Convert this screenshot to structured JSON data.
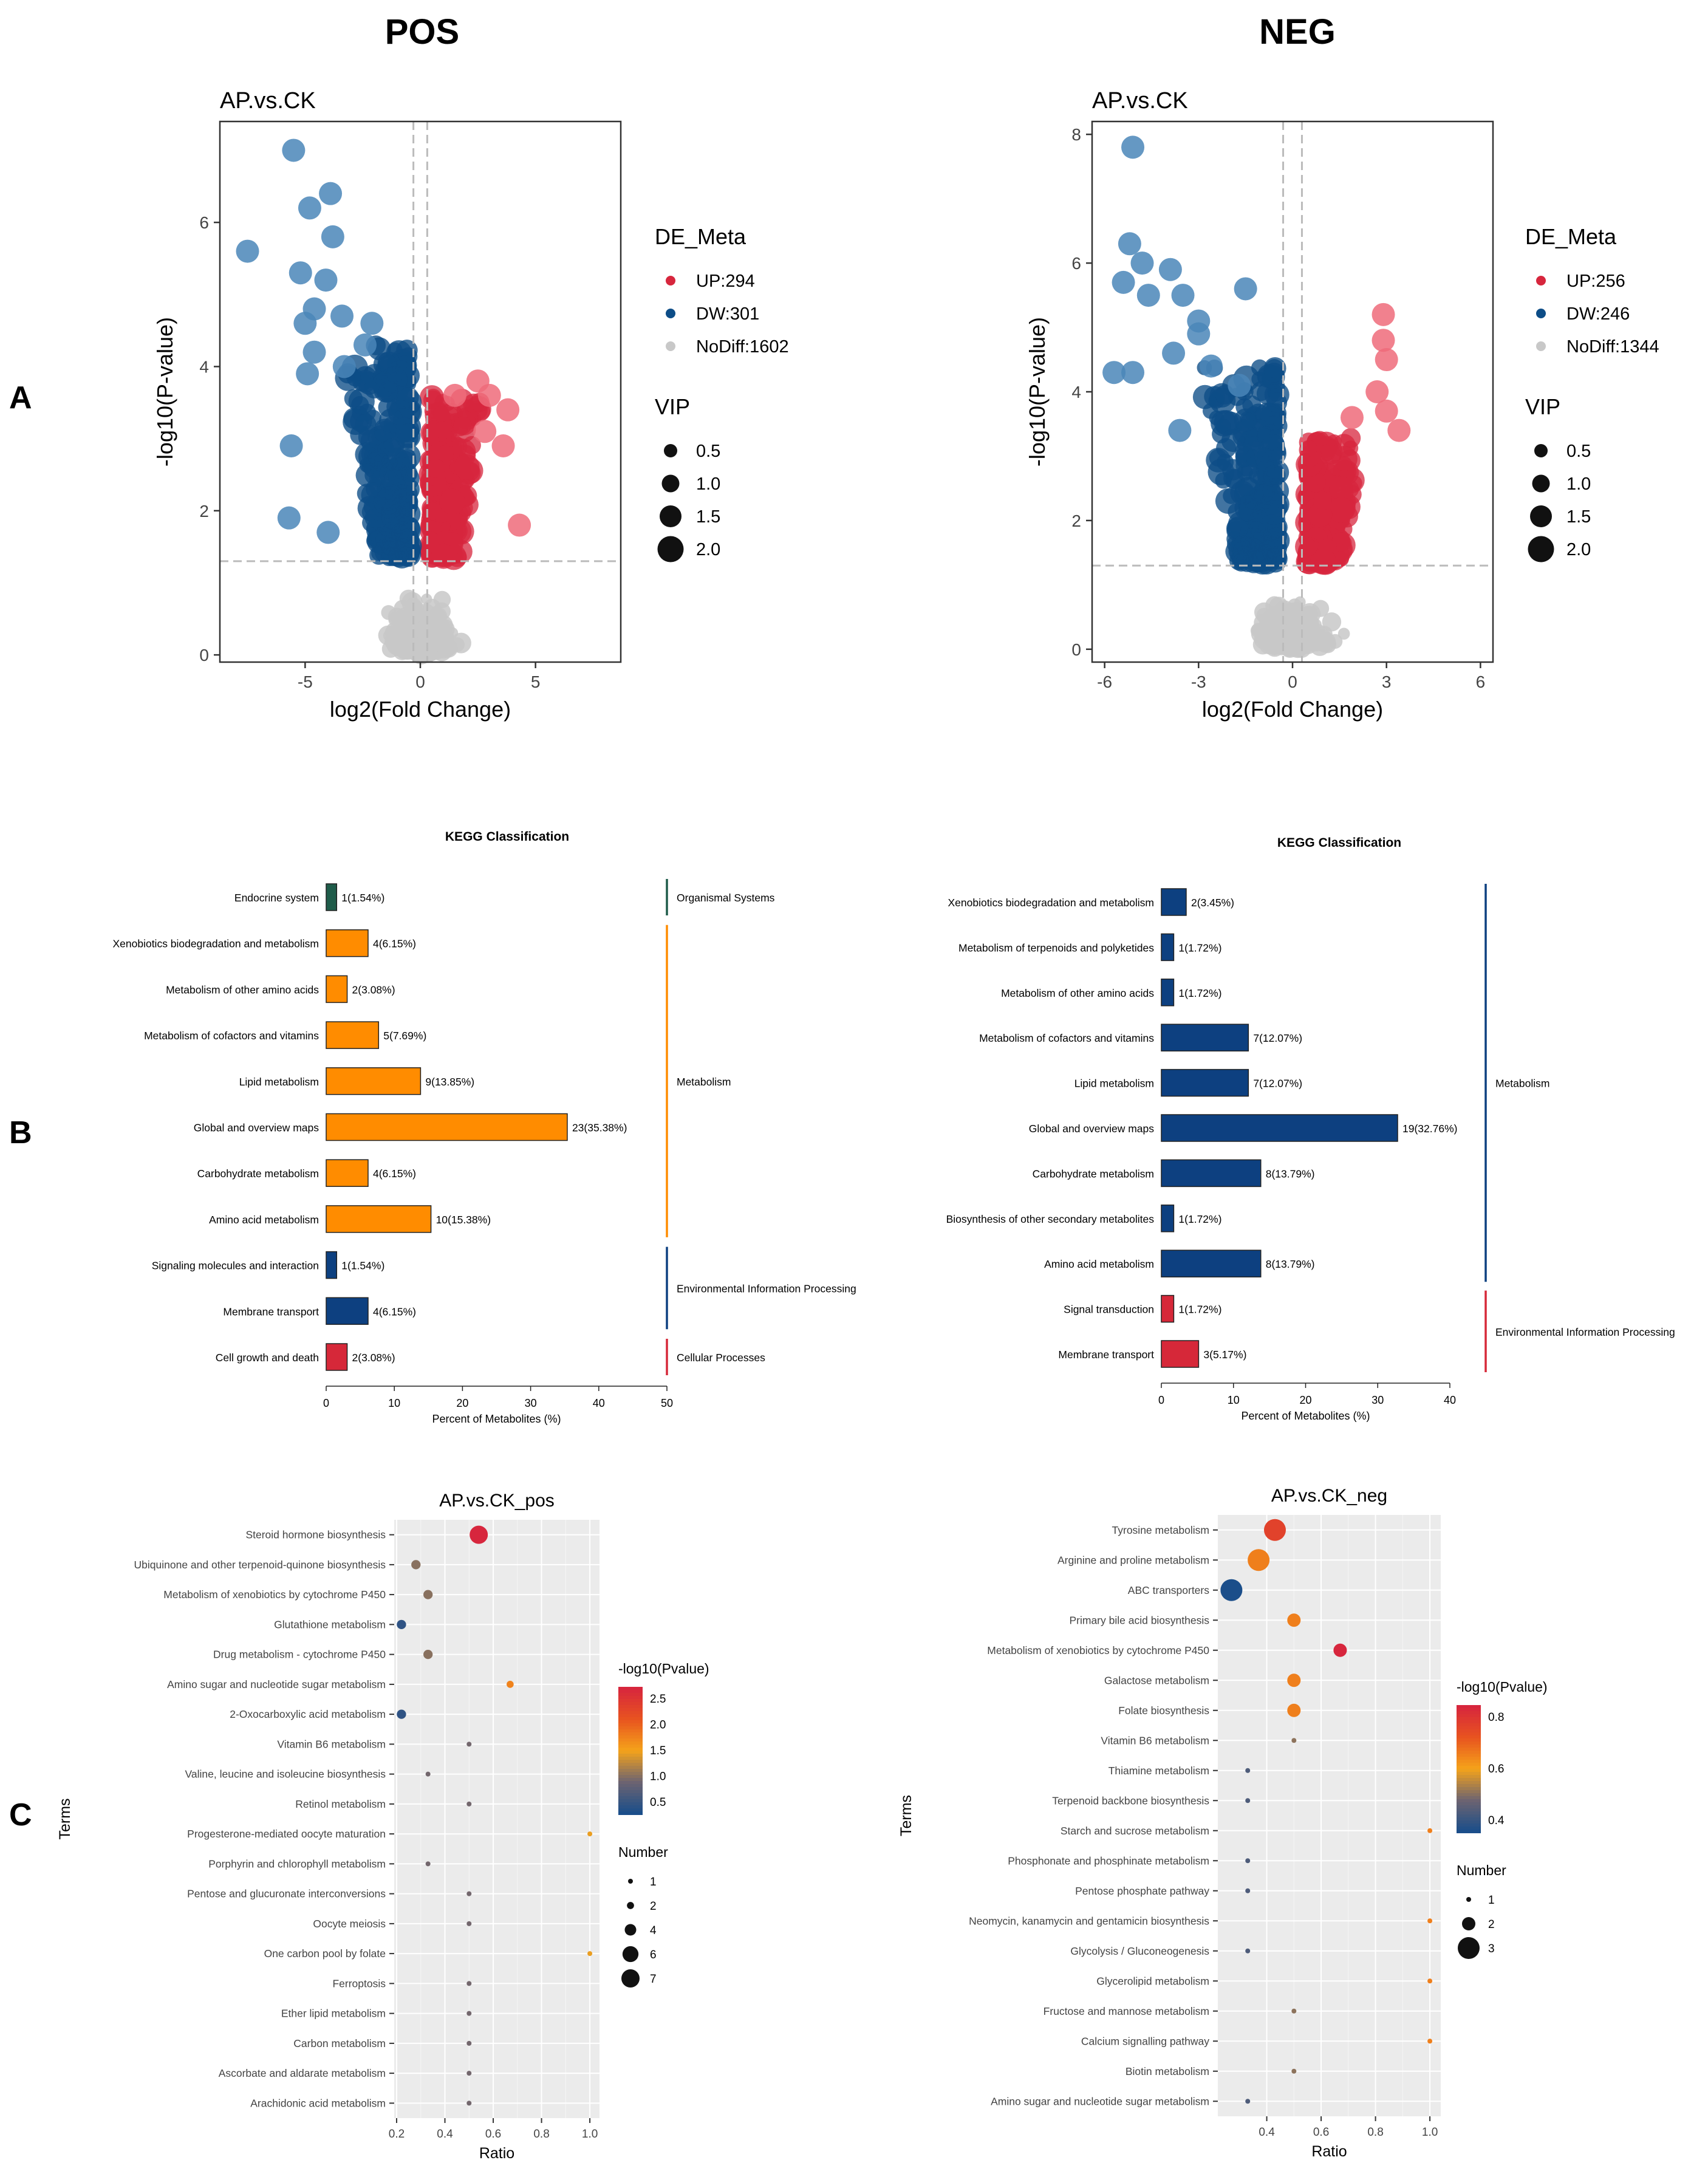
{
  "headers": {
    "pos": "POS",
    "neg": "NEG"
  },
  "panel_labels": {
    "a": "A",
    "b": "B",
    "c": "C"
  },
  "colors": {
    "up": "#d7263d",
    "down": "#0d4d87",
    "nodiff": "#c8c8c8",
    "metabolism": "#ff8c00",
    "organismal": "#1f5c4a",
    "env": "#0d4080",
    "cellular": "#d62839",
    "panel_bg": "#ebebeb"
  },
  "chart_data": [
    {
      "id": "volcano_pos",
      "type": "scatter",
      "title": "AP.vs.CK",
      "xlabel": "log2(Fold Change)",
      "ylabel": "-log10(P-value)",
      "xlim": [
        -8.7,
        8.7
      ],
      "ylim": [
        -0.1,
        7.4
      ],
      "xticks": [
        -5,
        0,
        5
      ],
      "yticks": [
        0,
        2,
        4,
        6
      ],
      "fc_threshold": 0.3,
      "p_threshold": 1.3,
      "legend": {
        "title": "DE_Meta",
        "items": [
          "UP:294",
          "DW:301",
          "NoDiff:1602"
        ],
        "vip_title": "VIP",
        "vip_items": [
          "0.5",
          "1.0",
          "1.5",
          "2.0"
        ]
      },
      "outliers": [
        [
          -5.5,
          7.0
        ],
        [
          -7.5,
          5.6
        ],
        [
          -3.9,
          6.4
        ],
        [
          -4.8,
          6.2
        ],
        [
          -3.8,
          5.8
        ],
        [
          -5.2,
          5.3
        ],
        [
          -4.1,
          5.2
        ],
        [
          -5.0,
          4.6
        ],
        [
          -4.6,
          4.8
        ],
        [
          -3.4,
          4.7
        ],
        [
          -2.1,
          4.6
        ],
        [
          -4.6,
          4.2
        ],
        [
          -2.4,
          4.3
        ],
        [
          -4.9,
          3.9
        ],
        [
          -3.3,
          4.0
        ],
        [
          -5.6,
          2.9
        ],
        [
          -5.7,
          1.9
        ],
        [
          -4.0,
          1.7
        ],
        [
          1.5,
          3.6
        ],
        [
          2.5,
          3.8
        ],
        [
          3.0,
          3.6
        ],
        [
          3.8,
          3.4
        ],
        [
          3.6,
          2.9
        ],
        [
          4.3,
          1.8
        ],
        [
          2.8,
          3.1
        ]
      ]
    },
    {
      "id": "volcano_neg",
      "type": "scatter",
      "title": "AP.vs.CK",
      "xlabel": "log2(Fold Change)",
      "ylabel": "-log10(P-value)",
      "xlim": [
        -6.4,
        6.4
      ],
      "ylim": [
        -0.2,
        8.2
      ],
      "xticks": [
        -6,
        -3,
        0,
        3,
        6
      ],
      "yticks": [
        0,
        2,
        4,
        6,
        8
      ],
      "fc_threshold": 0.3,
      "p_threshold": 1.3,
      "legend": {
        "title": "DE_Meta",
        "items": [
          "UP:256",
          "DW:246",
          "NoDiff:1344"
        ],
        "vip_title": "VIP",
        "vip_items": [
          "0.5",
          "1.0",
          "1.5",
          "2.0"
        ]
      },
      "outliers": [
        [
          -5.1,
          7.8
        ],
        [
          -5.2,
          6.3
        ],
        [
          -4.8,
          6.0
        ],
        [
          -5.4,
          5.7
        ],
        [
          -3.9,
          5.9
        ],
        [
          -4.6,
          5.5
        ],
        [
          -3.5,
          5.5
        ],
        [
          -3.0,
          5.1
        ],
        [
          -1.5,
          5.6
        ],
        [
          -5.7,
          4.3
        ],
        [
          -5.1,
          4.3
        ],
        [
          -3.8,
          4.6
        ],
        [
          -3.0,
          4.9
        ],
        [
          -2.6,
          4.4
        ],
        [
          -1.7,
          4.1
        ],
        [
          -3.6,
          3.4
        ],
        [
          2.9,
          5.2
        ],
        [
          2.9,
          4.8
        ],
        [
          3.0,
          4.5
        ],
        [
          2.7,
          4.0
        ],
        [
          3.0,
          3.7
        ],
        [
          1.9,
          3.6
        ],
        [
          3.4,
          3.4
        ]
      ]
    },
    {
      "id": "kegg_pos",
      "type": "bar",
      "title": "KEGG Classification",
      "xlabel": "Percent of Metabolites (%)",
      "xlim": [
        0,
        50
      ],
      "xticks": [
        0,
        10,
        20,
        30,
        40,
        50
      ],
      "categories": [
        "Endocrine system",
        "Xenobiotics biodegradation and metabolism",
        "Metabolism of other amino acids",
        "Metabolism of cofactors and vitamins",
        "Lipid metabolism",
        "Global and overview maps",
        "Carbohydrate metabolism",
        "Amino acid metabolism",
        "Signaling molecules and interaction",
        "Membrane transport",
        "Cell growth and death"
      ],
      "values": [
        1.54,
        6.15,
        3.08,
        7.69,
        13.85,
        35.38,
        6.15,
        15.38,
        1.54,
        6.15,
        3.08
      ],
      "labels": [
        "1(1.54%)",
        "4(6.15%)",
        "2(3.08%)",
        "5(7.69%)",
        "9(13.85%)",
        "23(35.38%)",
        "4(6.15%)",
        "10(15.38%)",
        "1(1.54%)",
        "4(6.15%)",
        "2(3.08%)"
      ],
      "bar_groups": [
        "organismal",
        "metabolism",
        "metabolism",
        "metabolism",
        "metabolism",
        "metabolism",
        "metabolism",
        "metabolism",
        "env",
        "env",
        "cellular"
      ],
      "groups": [
        {
          "name": "Organismal Systems",
          "key": "organismal",
          "from": 0,
          "to": 0
        },
        {
          "name": "Metabolism",
          "key": "metabolism",
          "from": 1,
          "to": 7
        },
        {
          "name": "Environmental Information Processing",
          "key": "env",
          "from": 8,
          "to": 9
        },
        {
          "name": "Cellular Processes",
          "key": "cellular",
          "from": 10,
          "to": 10
        }
      ]
    },
    {
      "id": "kegg_neg",
      "type": "bar",
      "title": "KEGG Classification",
      "xlabel": "Percent of Metabolites (%)",
      "xlim": [
        0,
        40
      ],
      "xticks": [
        0,
        10,
        20,
        30,
        40
      ],
      "categories": [
        "Xenobiotics biodegradation and metabolism",
        "Metabolism of terpenoids and polyketides",
        "Metabolism of other amino acids",
        "Metabolism of cofactors and vitamins",
        "Lipid metabolism",
        "Global and overview maps",
        "Carbohydrate metabolism",
        "Biosynthesis of other secondary metabolites",
        "Amino acid metabolism",
        "Signal transduction",
        "Membrane transport"
      ],
      "values": [
        3.45,
        1.72,
        1.72,
        12.07,
        12.07,
        32.76,
        13.79,
        1.72,
        13.79,
        1.72,
        5.17
      ],
      "labels": [
        "2(3.45%)",
        "1(1.72%)",
        "1(1.72%)",
        "7(12.07%)",
        "7(12.07%)",
        "19(32.76%)",
        "8(13.79%)",
        "1(1.72%)",
        "8(13.79%)",
        "1(1.72%)",
        "3(5.17%)"
      ],
      "bar_groups": [
        "env",
        "env",
        "env",
        "env",
        "env",
        "env",
        "env",
        "env",
        "env",
        "cellular",
        "cellular"
      ],
      "groups": [
        {
          "name": "Metabolism",
          "key": "env",
          "from": 0,
          "to": 8
        },
        {
          "name": "Environmental Information Processing",
          "key": "cellular",
          "from": 9,
          "to": 10
        }
      ]
    },
    {
      "id": "bubble_pos",
      "type": "scatter",
      "title": "AP.vs.CK_pos",
      "xlabel": "Ratio",
      "ylabel": "Terms",
      "xlim": [
        0.19,
        1.04
      ],
      "xticks": [
        "0.2",
        "0.4",
        "0.6",
        "0.8",
        "1.0"
      ],
      "color_range": [
        0.2,
        2.7
      ],
      "color_title": "-log10(Pvalue)",
      "color_ticks": [
        "2.5",
        "2.0",
        "1.5",
        "1.0",
        "0.5"
      ],
      "size_title": "Number",
      "size_ticks": [
        "1",
        "2",
        "4",
        "6",
        "7"
      ],
      "terms": [
        "Steroid hormone biosynthesis",
        "Ubiquinone and other terpenoid-quinone biosynthesis",
        "Metabolism of xenobiotics by cytochrome P450",
        "Glutathione metabolism",
        "Drug metabolism - cytochrome P450",
        "Amino sugar and nucleotide sugar metabolism",
        "2-Oxocarboxylic acid metabolism",
        "Vitamin B6 metabolism",
        "Valine, leucine and isoleucine biosynthesis",
        "Retinol metabolism",
        "Progesterone-mediated oocyte maturation",
        "Porphyrin and chlorophyll metabolism",
        "Pentose and glucuronate interconversions",
        "Oocyte meiosis",
        "One carbon pool by folate",
        "Ferroptosis",
        "Ether lipid metabolism",
        "Carbon metabolism",
        "Ascorbate and aldarate metabolism",
        "Arachidonic acid metabolism"
      ],
      "ratio": [
        0.54,
        0.28,
        0.33,
        0.22,
        0.33,
        0.67,
        0.22,
        0.5,
        0.33,
        0.5,
        1.0,
        0.33,
        0.5,
        0.5,
        1.0,
        0.5,
        0.5,
        0.5,
        0.5,
        0.5
      ],
      "pvalue": [
        2.7,
        0.95,
        0.95,
        0.35,
        0.95,
        1.7,
        0.35,
        0.85,
        0.85,
        0.85,
        1.4,
        0.85,
        0.85,
        0.85,
        1.4,
        0.85,
        0.85,
        0.85,
        0.85,
        0.85
      ],
      "number": [
        7,
        3,
        3,
        3,
        3,
        2,
        3,
        1,
        1,
        1,
        1,
        1,
        1,
        1,
        1,
        1,
        1,
        1,
        1,
        1
      ]
    },
    {
      "id": "bubble_neg",
      "type": "scatter",
      "title": "AP.vs.CK_neg",
      "xlabel": "Ratio",
      "ylabel": "Terms",
      "xlim": [
        0.22,
        1.04
      ],
      "xticks": [
        "0.4",
        "0.6",
        "0.8",
        "1.0"
      ],
      "color_range": [
        0.3,
        0.95
      ],
      "color_title": "-log10(Pvalue)",
      "color_ticks": [
        "0.8",
        "0.6",
        "0.4"
      ],
      "size_title": "Number",
      "size_ticks": [
        "1",
        "2",
        "3"
      ],
      "terms": [
        "Tyrosine metabolism",
        "Arginine and proline metabolism",
        "ABC transporters",
        "Primary bile acid biosynthesis",
        "Metabolism of xenobiotics by cytochrome P450",
        "Galactose metabolism",
        "Folate biosynthesis",
        "Vitamin B6 metabolism",
        "Thiamine metabolism",
        "Terpenoid backbone biosynthesis",
        "Starch and sucrose metabolism",
        "Phosphonate and phosphinate metabolism",
        "Pentose phosphate pathway",
        "Neomycin, kanamycin and gentamicin biosynthesis",
        "Glycolysis / Gluconeogenesis",
        "Glycerolipid metabolism",
        "Fructose and mannose metabolism",
        "Calcium signalling pathway",
        "Biotin metabolism",
        "Amino sugar and nucleotide sugar metabolism"
      ],
      "ratio": [
        0.43,
        0.37,
        0.27,
        0.5,
        0.67,
        0.5,
        0.5,
        0.5,
        0.33,
        0.33,
        1.0,
        0.33,
        0.33,
        1.0,
        0.33,
        1.0,
        0.5,
        1.0,
        0.5,
        0.33
      ],
      "pvalue": [
        0.85,
        0.7,
        0.3,
        0.7,
        0.95,
        0.7,
        0.7,
        0.5,
        0.4,
        0.4,
        0.7,
        0.4,
        0.4,
        0.7,
        0.4,
        0.7,
        0.5,
        0.7,
        0.5,
        0.4
      ],
      "number": [
        3,
        3,
        3,
        2,
        2,
        2,
        2,
        1,
        1,
        1,
        1,
        1,
        1,
        1,
        1,
        1,
        1,
        1,
        1,
        1
      ]
    }
  ]
}
